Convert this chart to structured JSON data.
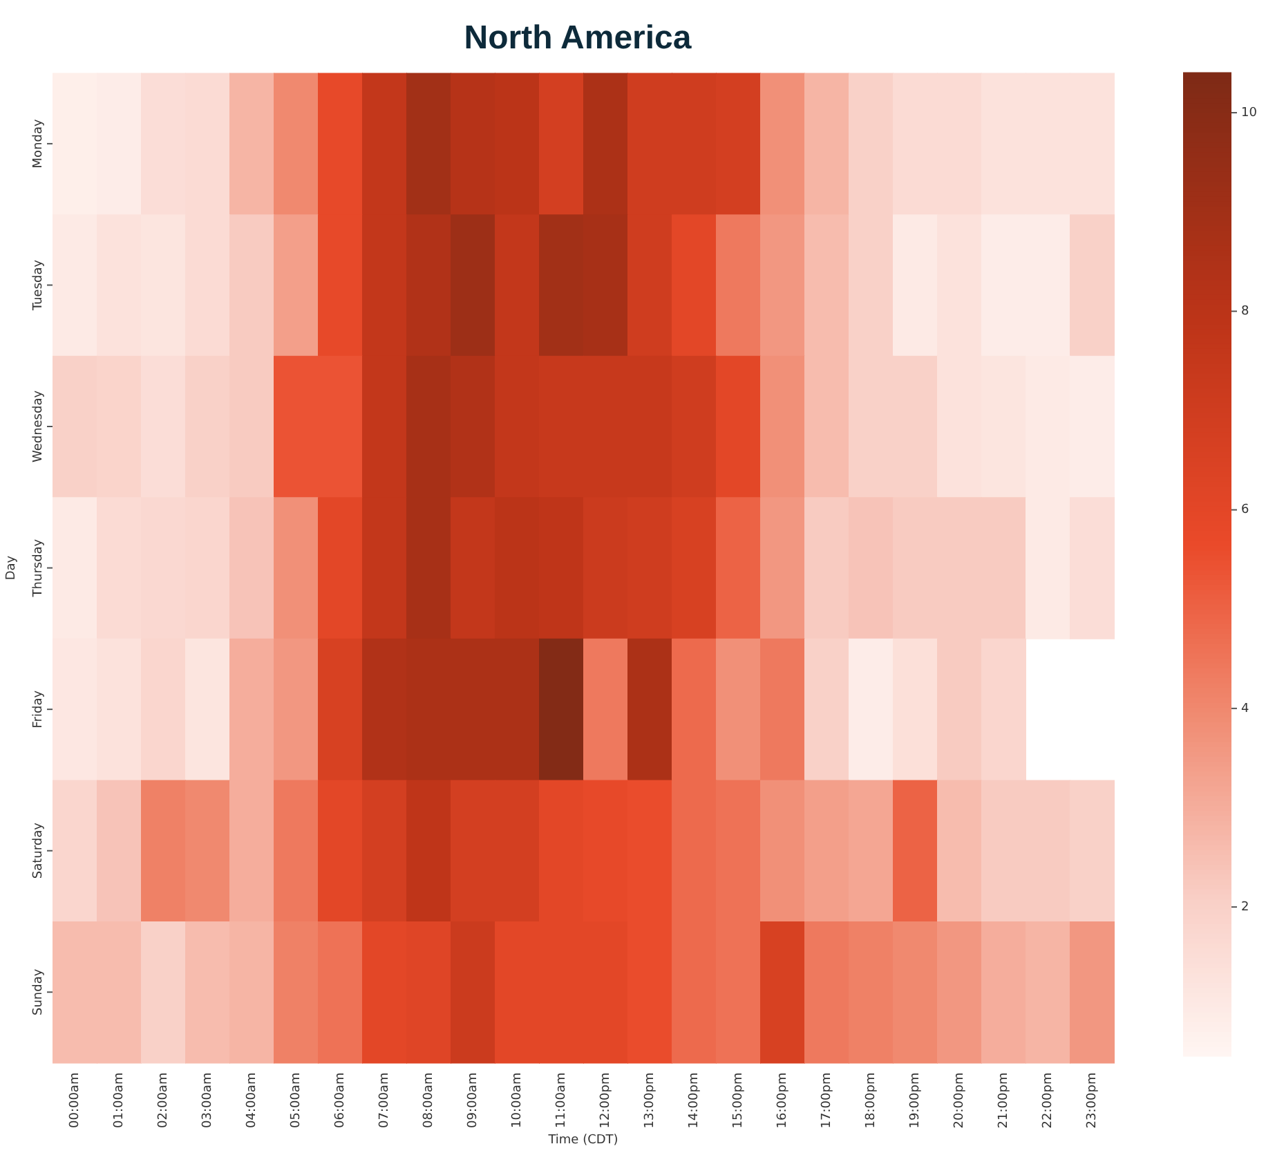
{
  "chart_data": {
    "type": "heatmap",
    "title": "North America",
    "xlabel": "Time (CDT)",
    "ylabel": "Day",
    "categories": [
      "00:00am",
      "01:00am",
      "02:00am",
      "03:00am",
      "04:00am",
      "05:00am",
      "06:00am",
      "07:00am",
      "08:00am",
      "09:00am",
      "10:00am",
      "11:00am",
      "12:00pm",
      "13:00pm",
      "14:00pm",
      "15:00pm",
      "16:00pm",
      "17:00pm",
      "18:00pm",
      "19:00pm",
      "20:00pm",
      "21:00pm",
      "22:00pm",
      "23:00pm"
    ],
    "y_categories": [
      "Monday",
      "Tuesday",
      "Wednesday",
      "Thursday",
      "Friday",
      "Saturday",
      "Sunday"
    ],
    "cells": [
      [
        0.8,
        0.9,
        1.5,
        1.6,
        2.8,
        4,
        5.8,
        7.6,
        9,
        8.2,
        8,
        6.8,
        8.6,
        7,
        7,
        6.8,
        3.8,
        2.8,
        2,
        1.6,
        1.6,
        1.3,
        1.3,
        1.3
      ],
      [
        1,
        1.3,
        1.2,
        1.6,
        2.2,
        3.4,
        5.8,
        7.6,
        8.4,
        9.2,
        7.6,
        9,
        8.8,
        7,
        6,
        4.4,
        3.6,
        2.6,
        2,
        1,
        1.3,
        0.9,
        0.9,
        2
      ],
      [
        2,
        1.9,
        1.5,
        2,
        2.2,
        5.4,
        5.4,
        7.6,
        8.8,
        8.4,
        7.6,
        7.4,
        7.4,
        7.4,
        7,
        6,
        3.8,
        2.6,
        2,
        2,
        1.3,
        1.2,
        1,
        0.9
      ],
      [
        1,
        1.6,
        1.7,
        1.8,
        2.4,
        3.8,
        6,
        7.6,
        8.8,
        7.6,
        8,
        7.8,
        7.2,
        7,
        6.6,
        5,
        3.6,
        2.2,
        2.4,
        2.2,
        2.2,
        2.2,
        1,
        1.5
      ],
      [
        1.1,
        1.3,
        1.8,
        1.2,
        3,
        3.6,
        6.6,
        8.4,
        8.6,
        8.6,
        8.6,
        10.2,
        4.4,
        8.6,
        4.8,
        3.8,
        4.4,
        2,
        0.9,
        1.4,
        2.2,
        1.8,
        null,
        null
      ],
      [
        1.8,
        2.4,
        4.2,
        4,
        3,
        4.4,
        6,
        6.8,
        7.8,
        6.8,
        6.8,
        6,
        5.8,
        5.6,
        4.8,
        4.6,
        3.8,
        3.4,
        3.2,
        5,
        2.6,
        2.2,
        2.2,
        2
      ],
      [
        2.6,
        2.6,
        2,
        2.6,
        2.8,
        4.2,
        4.6,
        6,
        6.2,
        7.2,
        6,
        6,
        6,
        5.6,
        4.8,
        4.6,
        6.6,
        4.4,
        4.2,
        4,
        3.6,
        3,
        2.8,
        3.6
      ]
    ],
    "clim": [
      0.5,
      10.4
    ],
    "cticks": [
      2,
      4,
      6,
      8,
      10
    ]
  }
}
